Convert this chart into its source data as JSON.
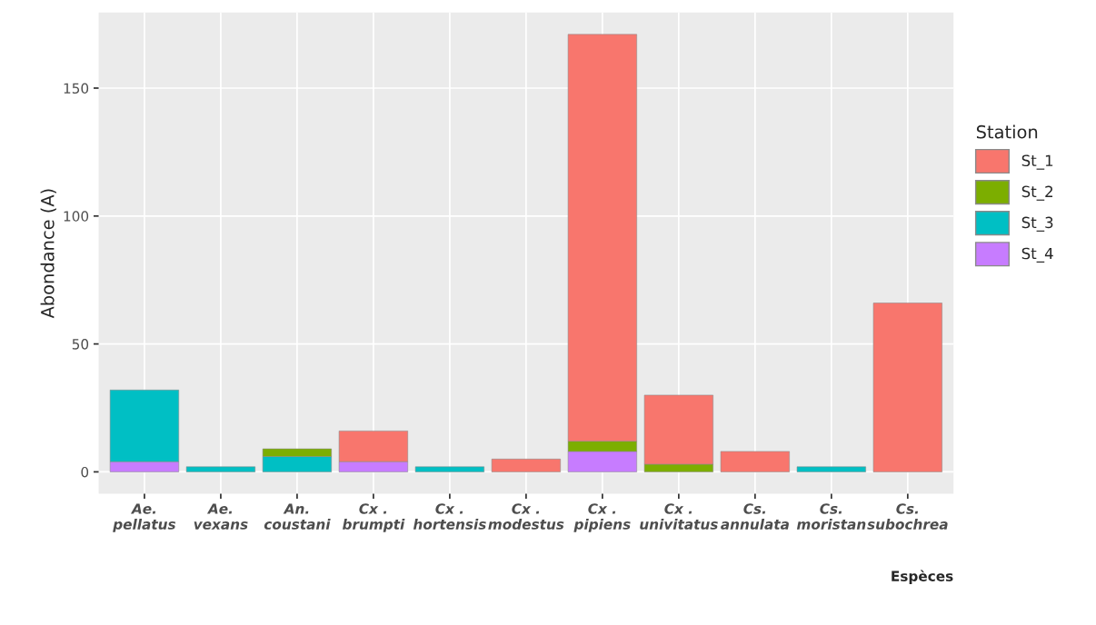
{
  "chart_data": {
    "type": "bar",
    "stacked": true,
    "xlabel": "Espèces",
    "ylabel": "Abondance (A)",
    "legend_title": "Station",
    "legend": "right",
    "grid": true,
    "categories": [
      "Ae. pellatus",
      "Ae. vexans",
      "An. coustani",
      "Cx . brumpti",
      "Cx . hortensis",
      "Cx . modestus",
      "Cx . pipiens",
      "Cx . univitatus",
      "Cs. annulata",
      "Cs. moristan",
      "Cs. subochrea"
    ],
    "series": [
      {
        "name": "St_4",
        "color": "#c77cff",
        "values": [
          4,
          null,
          null,
          4,
          null,
          null,
          8,
          null,
          null,
          null,
          null
        ]
      },
      {
        "name": "St_3",
        "color": "#00bfc4",
        "values": [
          28,
          2,
          6,
          null,
          2,
          null,
          null,
          null,
          null,
          2,
          null
        ]
      },
      {
        "name": "St_2",
        "color": "#7cae00",
        "values": [
          null,
          null,
          3,
          null,
          null,
          null,
          4,
          3,
          null,
          null,
          null
        ]
      },
      {
        "name": "St_1",
        "color": "#f8766d",
        "values": [
          null,
          null,
          null,
          12,
          null,
          5,
          159,
          27,
          8,
          null,
          66
        ]
      }
    ],
    "ylim": [
      -8.55,
      179.55
    ],
    "yticks": [
      0,
      50,
      100,
      150
    ]
  }
}
